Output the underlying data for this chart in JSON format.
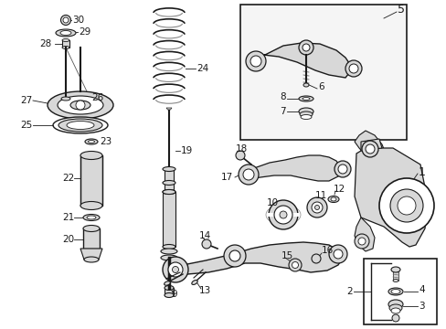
{
  "bg_color": "#ffffff",
  "line_color": "#1a1a1a",
  "gray_fill": "#d8d8d8",
  "dark_fill": "#888888",
  "figsize": [
    4.89,
    3.6
  ],
  "dpi": 100,
  "label_size": 9,
  "small_label_size": 7.5
}
